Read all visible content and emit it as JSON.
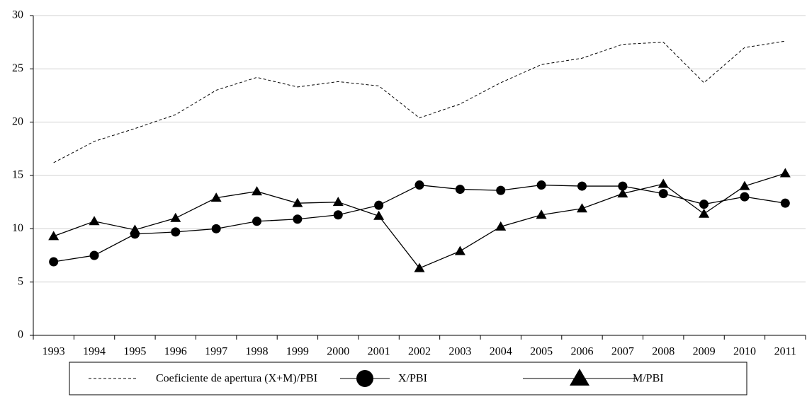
{
  "chart_data": {
    "type": "line",
    "categories": [
      "1993",
      "1994",
      "1995",
      "1996",
      "1997",
      "1998",
      "1999",
      "2000",
      "2001",
      "2002",
      "2003",
      "2004",
      "2005",
      "2006",
      "2007",
      "2008",
      "2009",
      "2010",
      "2011"
    ],
    "series": [
      {
        "name": "Coeficiente de apertura (X+M)/PBI",
        "color": "#000000",
        "line_style": "dashed",
        "marker": "none",
        "values": [
          16.2,
          18.2,
          19.4,
          20.7,
          23.0,
          24.2,
          23.3,
          23.8,
          23.4,
          20.4,
          21.7,
          23.7,
          25.4,
          26.0,
          27.3,
          27.5,
          23.7,
          27.0,
          27.6
        ]
      },
      {
        "name": "X/PBI",
        "color": "#000000",
        "line_style": "solid",
        "marker": "circle",
        "values": [
          6.9,
          7.5,
          9.5,
          9.7,
          10.0,
          10.7,
          10.9,
          11.3,
          12.2,
          14.1,
          13.7,
          13.6,
          14.1,
          14.0,
          14.0,
          13.3,
          12.3,
          13.0,
          12.4
        ]
      },
      {
        "name": "M/PBI",
        "color": "#000000",
        "line_style": "solid",
        "marker": "triangle",
        "values": [
          9.3,
          10.7,
          9.9,
          11.0,
          12.9,
          13.5,
          12.4,
          12.5,
          11.2,
          6.3,
          7.9,
          10.2,
          11.3,
          11.9,
          13.3,
          14.2,
          11.4,
          14.0,
          15.2
        ]
      }
    ],
    "ylim": [
      0,
      30
    ],
    "yticks": [
      0,
      5,
      10,
      15,
      20,
      25,
      30
    ],
    "grid": true,
    "legend": "bottom"
  }
}
